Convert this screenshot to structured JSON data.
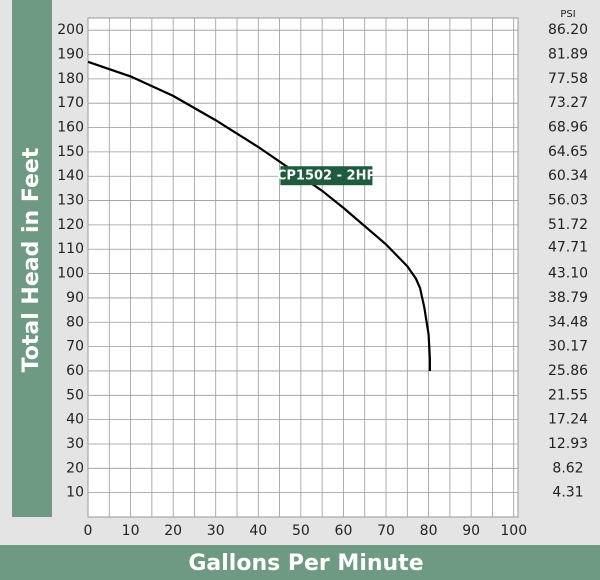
{
  "chart_data": {
    "type": "line",
    "y_label": "Total Head in Feet",
    "x_label": "Gallons Per Minute",
    "y2_label": "PSI",
    "series": [
      {
        "name": "CP1502 - 2HP",
        "color": "#000000",
        "x": [
          0,
          10,
          20,
          30,
          40,
          50,
          55,
          60,
          70,
          75,
          77,
          78,
          79,
          80,
          80.3,
          80.3
        ],
        "values": [
          187,
          181,
          173,
          163,
          152,
          140,
          134,
          127,
          112,
          103,
          98,
          94,
          86,
          75,
          65,
          60
        ]
      }
    ],
    "annotation": {
      "text": "CP1502 - 2HP",
      "x": 56,
      "y": 140
    },
    "xlim": [
      0,
      101
    ],
    "xticks": [
      0,
      10,
      20,
      30,
      40,
      50,
      60,
      70,
      80,
      90,
      100
    ],
    "xminorticks": [
      5,
      15,
      25,
      35,
      45,
      55,
      65,
      75,
      85,
      95
    ],
    "ylim": [
      0,
      205
    ],
    "yticks": [
      10,
      20,
      30,
      40,
      50,
      60,
      70,
      80,
      90,
      100,
      110,
      120,
      130,
      140,
      150,
      160,
      170,
      180,
      190,
      200
    ],
    "y2lim": [
      0,
      88.355
    ],
    "y2ticks": [
      4.31,
      8.62,
      12.93,
      17.24,
      21.55,
      25.86,
      {
        "value": 30.17,
        "label": "30.17"
      },
      34.48,
      38.79,
      {
        "value": 43.1,
        "label": "43.10"
      },
      47.71,
      51.72,
      56.03,
      60.34,
      64.65,
      68.96,
      73.27,
      77.58,
      81.89,
      {
        "value": 86.2,
        "label": "86.20"
      }
    ],
    "grid": true
  }
}
